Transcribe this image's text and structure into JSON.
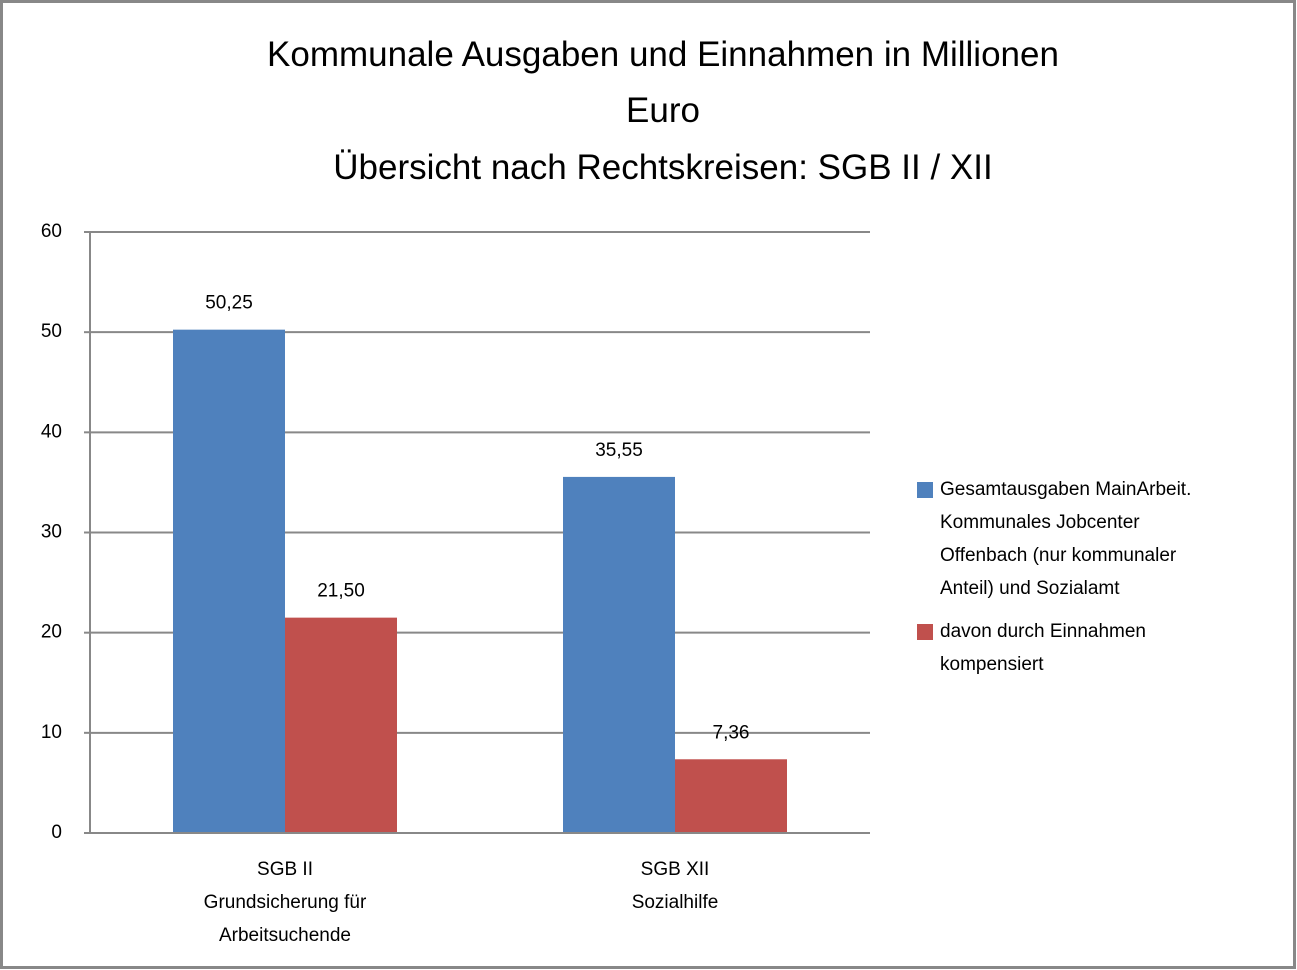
{
  "chart_data": {
    "type": "bar",
    "title": "Kommunale Ausgaben und Einnahmen in Millionen\nEuro",
    "subtitle": "Übersicht nach Rechtskreisen:  SGB II / XII",
    "categories": [
      "SGB II\nGrundsicherung für\nArbeitsuchende",
      "SGB XII\nSozialhilfe"
    ],
    "series": [
      {
        "name": "Gesamtausgaben  MainArbeit.\nKommunales Jobcenter\nOffenbach (nur kommunaler\nAnteil) und Sozialamt",
        "color": "#4f81bd",
        "values": [
          50.25,
          35.55
        ],
        "value_labels": [
          "50,25",
          "35,55"
        ]
      },
      {
        "name": "davon durch Einnahmen\nkompensiert",
        "color": "#c0504d",
        "values": [
          21.5,
          7.36
        ],
        "value_labels": [
          "21,50",
          "7,36"
        ]
      }
    ],
    "ylim": [
      0,
      60
    ],
    "yticks": [
      0,
      10,
      20,
      30,
      40,
      50,
      60
    ],
    "grid": true,
    "legend": "right"
  }
}
